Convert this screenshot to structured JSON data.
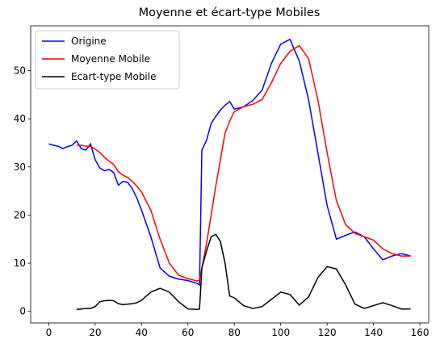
{
  "chart_data": {
    "type": "line",
    "title": "Moyenne et écart-type Mobiles",
    "x": [
      0,
      2,
      4,
      6,
      8,
      10,
      12,
      14,
      16,
      18,
      20,
      22,
      24,
      26,
      28,
      30,
      32,
      34,
      36,
      38,
      40,
      44,
      48,
      52,
      56,
      60,
      64,
      65,
      66,
      68,
      70,
      72,
      74,
      76,
      78,
      80,
      84,
      88,
      92,
      96,
      100,
      104,
      108,
      112,
      116,
      120,
      124,
      128,
      132,
      136,
      140,
      144,
      148,
      152,
      156
    ],
    "series": [
      {
        "name": "Origine",
        "color": "#0000ff",
        "values": [
          34.8,
          34.5,
          34.3,
          33.8,
          34.2,
          34.5,
          35.4,
          33.8,
          33.5,
          34.8,
          31.5,
          29.8,
          29.2,
          29.5,
          28.8,
          26.2,
          27.0,
          26.8,
          25.5,
          23.5,
          21.0,
          15.5,
          9.0,
          7.3,
          6.7,
          6.4,
          5.8,
          5.5,
          33.5,
          35.5,
          39.0,
          40.5,
          41.8,
          42.8,
          43.6,
          42.0,
          42.5,
          43.8,
          46.0,
          51.5,
          55.5,
          56.5,
          52.0,
          44.0,
          33.0,
          22.0,
          15.0,
          15.8,
          16.5,
          15.5,
          13.0,
          10.7,
          11.5,
          12.0,
          11.5
        ]
      },
      {
        "name": "Moyenne Mobile",
        "color": "#ff0000",
        "values": [
          null,
          null,
          null,
          null,
          null,
          null,
          34.5,
          34.5,
          34.3,
          34.3,
          33.7,
          33.0,
          32.0,
          31.2,
          30.5,
          29.0,
          28.3,
          27.8,
          27.0,
          26.0,
          24.8,
          21.0,
          15.0,
          10.0,
          7.5,
          6.8,
          6.3,
          6.5,
          9.0,
          14.0,
          20.0,
          26.0,
          31.5,
          37.0,
          39.5,
          41.5,
          42.5,
          43.0,
          44.0,
          47.5,
          51.5,
          54.0,
          55.2,
          52.5,
          44.0,
          33.0,
          23.0,
          18.0,
          16.2,
          15.5,
          14.8,
          13.0,
          12.0,
          11.5,
          11.5
        ]
      },
      {
        "name": "Ecart-type Mobile",
        "color": "#000000",
        "values": [
          null,
          null,
          null,
          null,
          null,
          null,
          0.4,
          0.5,
          0.6,
          0.6,
          1.0,
          2.0,
          2.2,
          2.3,
          2.2,
          1.6,
          1.4,
          1.5,
          1.6,
          1.8,
          2.3,
          4.0,
          4.8,
          4.0,
          2.0,
          0.5,
          0.4,
          0.5,
          9.0,
          12.5,
          15.5,
          16.0,
          14.5,
          10.0,
          3.2,
          2.8,
          1.2,
          0.6,
          1.0,
          2.5,
          4.0,
          3.5,
          1.3,
          3.0,
          7.0,
          9.3,
          8.8,
          5.5,
          1.5,
          0.6,
          1.2,
          1.8,
          1.2,
          0.5,
          0.5
        ]
      }
    ],
    "xlim": [
      -7.8,
      163.8
    ],
    "xticks": [
      0,
      20,
      40,
      60,
      80,
      100,
      120,
      140,
      160
    ],
    "ylim": [
      -2.4,
      59.3
    ],
    "yticks": [
      0,
      10,
      20,
      30,
      40,
      50
    ],
    "legend": "upper left"
  }
}
